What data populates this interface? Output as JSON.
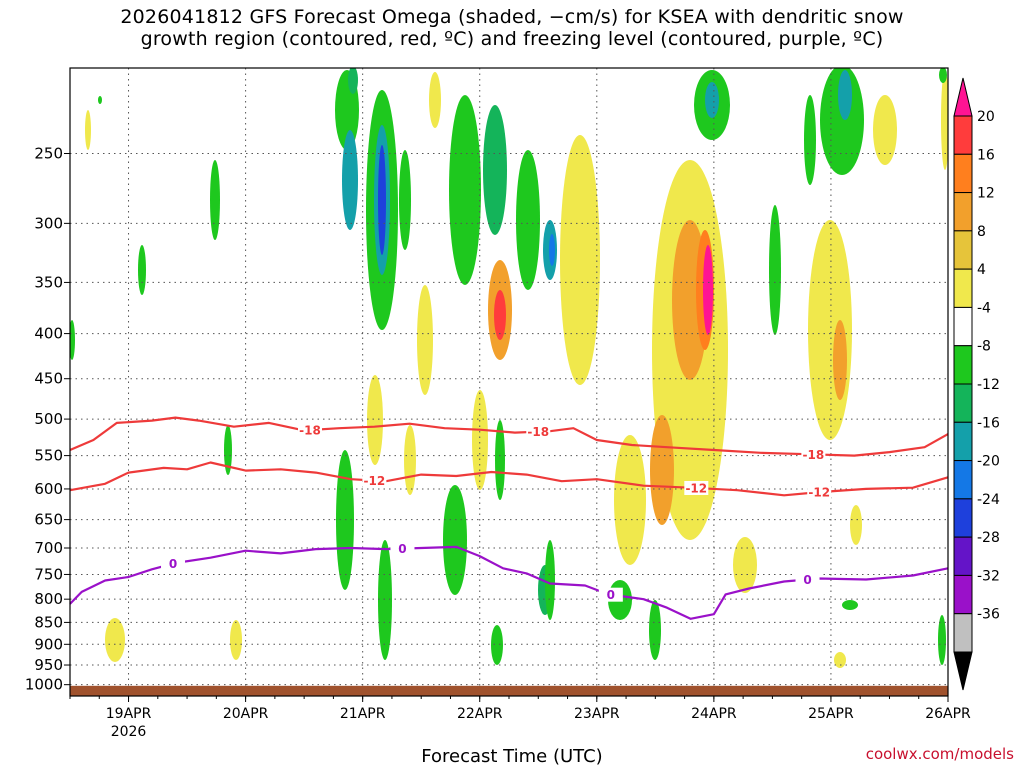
{
  "title": {
    "line1": "2026041812 GFS Forecast Omega (shaded, −cm/s) for KSEA with dendritic snow",
    "line2": "growth region (contoured, red, ºC) and freezing level (contoured, purple, ºC)"
  },
  "credit": "coolwx.com/models",
  "colors": {
    "dgz_contour": "#ee3a3a",
    "freezing_contour": "#9a11c9",
    "ground": "#a0522d",
    "grid": "#555555"
  },
  "chart_data": {
    "type": "heatmap",
    "xlabel": "Forecast Time (UTC)",
    "xlim": [
      18.5,
      26.0
    ],
    "x_ticks": [
      {
        "x": 19,
        "label": "19APR",
        "sub": "2026"
      },
      {
        "x": 20,
        "label": "20APR",
        "sub": ""
      },
      {
        "x": 21,
        "label": "21APR",
        "sub": ""
      },
      {
        "x": 22,
        "label": "22APR",
        "sub": ""
      },
      {
        "x": 23,
        "label": "23APR",
        "sub": ""
      },
      {
        "x": 24,
        "label": "24APR",
        "sub": ""
      },
      {
        "x": 25,
        "label": "25APR",
        "sub": ""
      },
      {
        "x": 26,
        "label": "26APR",
        "sub": ""
      }
    ],
    "y_axis": "pressure (hPa), log scale, inverted",
    "ylim": [
      1030,
      200
    ],
    "y_ticks": [
      250,
      300,
      350,
      400,
      450,
      500,
      550,
      600,
      650,
      700,
      750,
      800,
      850,
      900,
      950,
      1000
    ],
    "grid": true,
    "colorbar": {
      "placement": "right",
      "labels": [
        20,
        16,
        12,
        8,
        4,
        -4,
        -8,
        -12,
        -16,
        -20,
        -24,
        -28,
        -32,
        -36
      ],
      "colors": [
        "#ff1493",
        "#ff3c3c",
        "#ff7f1e",
        "#f2a02c",
        "#e6c43a",
        "#f0e84c",
        "#ffffff",
        "#1ec81e",
        "#14b45a",
        "#14a0aa",
        "#1478e6",
        "#1e40dc",
        "#6414c8",
        "#9a11c9",
        "#c0c0c0",
        "#000000"
      ]
    },
    "contours": [
      {
        "label": "-18",
        "color_key": "dgz_contour",
        "label_x": [
          20.55,
          22.5,
          24.85
        ],
        "points": [
          [
            18.5,
            542
          ],
          [
            18.7,
            528
          ],
          [
            18.9,
            505
          ],
          [
            19.2,
            502
          ],
          [
            19.4,
            498
          ],
          [
            19.6,
            502
          ],
          [
            19.9,
            510
          ],
          [
            20.2,
            505
          ],
          [
            20.5,
            515
          ],
          [
            20.8,
            512
          ],
          [
            21.1,
            510
          ],
          [
            21.4,
            506
          ],
          [
            21.7,
            512
          ],
          [
            22.0,
            514
          ],
          [
            22.3,
            518
          ],
          [
            22.6,
            516
          ],
          [
            22.8,
            512
          ],
          [
            23.0,
            528
          ],
          [
            23.3,
            535
          ],
          [
            23.6,
            538
          ],
          [
            24.0,
            542
          ],
          [
            24.4,
            546
          ],
          [
            24.8,
            548
          ],
          [
            25.2,
            550
          ],
          [
            25.5,
            545
          ],
          [
            25.8,
            538
          ],
          [
            26.0,
            520
          ]
        ]
      },
      {
        "label": "-12",
        "color_key": "dgz_contour",
        "label_x": [
          21.1,
          23.85,
          24.9
        ],
        "points": [
          [
            18.5,
            602
          ],
          [
            18.8,
            592
          ],
          [
            19.0,
            575
          ],
          [
            19.3,
            568
          ],
          [
            19.5,
            570
          ],
          [
            19.7,
            560
          ],
          [
            20.0,
            572
          ],
          [
            20.3,
            570
          ],
          [
            20.6,
            575
          ],
          [
            20.9,
            585
          ],
          [
            21.2,
            588
          ],
          [
            21.5,
            578
          ],
          [
            21.8,
            580
          ],
          [
            22.1,
            574
          ],
          [
            22.4,
            578
          ],
          [
            22.7,
            588
          ],
          [
            23.0,
            585
          ],
          [
            23.4,
            595
          ],
          [
            23.8,
            598
          ],
          [
            24.2,
            602
          ],
          [
            24.6,
            610
          ],
          [
            24.9,
            605
          ],
          [
            25.3,
            600
          ],
          [
            25.7,
            598
          ],
          [
            26.0,
            582
          ]
        ]
      },
      {
        "label": "0",
        "color_key": "freezing_contour",
        "label_x": [
          19.38,
          21.34,
          23.12,
          24.8
        ],
        "points": [
          [
            18.5,
            810
          ],
          [
            18.6,
            785
          ],
          [
            18.8,
            762
          ],
          [
            19.0,
            755
          ],
          [
            19.2,
            740
          ],
          [
            19.4,
            728
          ],
          [
            19.7,
            718
          ],
          [
            20.0,
            705
          ],
          [
            20.3,
            710
          ],
          [
            20.6,
            702
          ],
          [
            20.9,
            700
          ],
          [
            21.2,
            702
          ],
          [
            21.5,
            700
          ],
          [
            21.8,
            698
          ],
          [
            22.0,
            715
          ],
          [
            22.2,
            738
          ],
          [
            22.4,
            748
          ],
          [
            22.6,
            768
          ],
          [
            22.9,
            772
          ],
          [
            23.1,
            790
          ],
          [
            23.4,
            800
          ],
          [
            23.6,
            818
          ],
          [
            23.8,
            842
          ],
          [
            24.0,
            832
          ],
          [
            24.1,
            790
          ],
          [
            24.3,
            778
          ],
          [
            24.6,
            764
          ],
          [
            24.9,
            758
          ],
          [
            25.3,
            760
          ],
          [
            25.7,
            752
          ],
          [
            26.0,
            738
          ]
        ]
      }
    ]
  }
}
